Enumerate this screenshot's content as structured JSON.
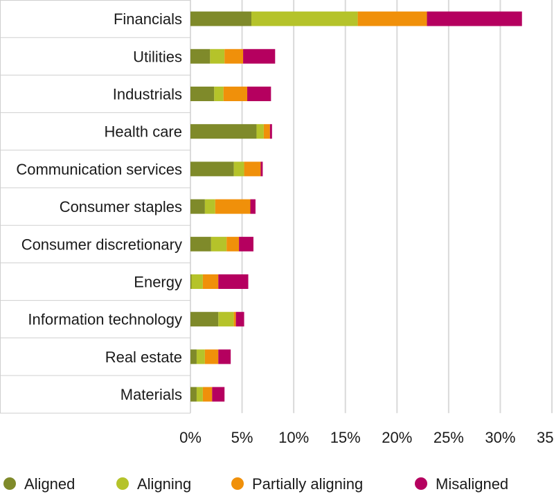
{
  "chart_data": {
    "type": "bar",
    "orientation": "horizontal",
    "stacked": true,
    "categories": [
      "Financials",
      "Utilities",
      "Industrials",
      "Health care",
      "Communication services",
      "Consumer staples",
      "Consumer discretionary",
      "Energy",
      "Information technology",
      "Real estate",
      "Materials"
    ],
    "series": [
      {
        "name": "Aligned",
        "color": "#7f8a2a",
        "values": [
          5.9,
          1.9,
          2.3,
          6.4,
          4.2,
          1.4,
          2.0,
          0.1,
          2.7,
          0.6,
          0.6
        ]
      },
      {
        "name": "Aligning",
        "color": "#b5c32a",
        "values": [
          10.3,
          1.4,
          0.9,
          0.7,
          1.0,
          1.0,
          1.5,
          1.1,
          1.5,
          0.8,
          0.6
        ]
      },
      {
        "name": "Partially aligning",
        "color": "#f0900a",
        "values": [
          6.7,
          1.8,
          2.3,
          0.6,
          1.6,
          3.4,
          1.2,
          1.5,
          0.2,
          1.3,
          0.9
        ]
      },
      {
        "name": "Misaligned",
        "color": "#b5005f",
        "values": [
          9.2,
          3.1,
          2.3,
          0.2,
          0.2,
          0.5,
          1.4,
          2.9,
          0.8,
          1.2,
          1.2
        ]
      }
    ],
    "xlim": [
      0,
      35
    ],
    "xticks": [
      0,
      5,
      10,
      15,
      20,
      25,
      30,
      35
    ],
    "xtick_labels": [
      "0%",
      "5%",
      "10%",
      "15%",
      "20%",
      "25%",
      "30%",
      "35%"
    ],
    "xlabel": "",
    "ylabel": "",
    "title": "",
    "grid": "vertical",
    "legend_position": "bottom"
  }
}
